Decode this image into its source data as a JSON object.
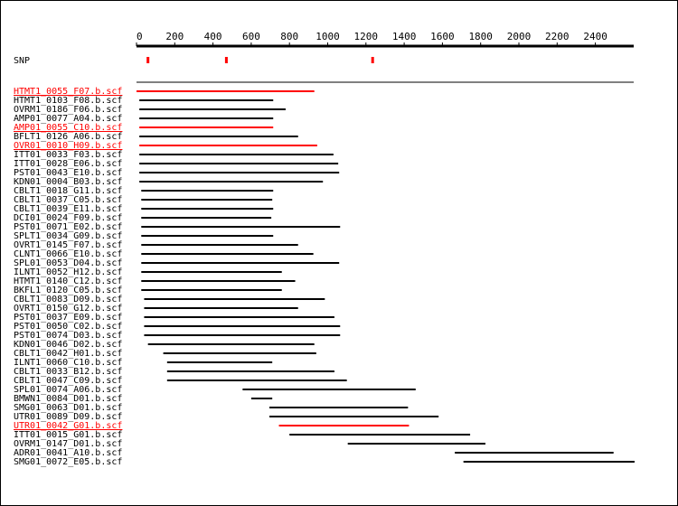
{
  "colors": {
    "background": "#ffffff",
    "ink": "#000000",
    "highlight": "#ff0000"
  },
  "axis": {
    "ticks": [
      "0",
      "200",
      "400",
      "600",
      "800",
      "1000",
      "1200",
      "1400",
      "1600",
      "1800",
      "2000",
      "2200",
      "2400"
    ],
    "range": [
      0,
      2600
    ]
  },
  "snp": {
    "label": "SNP",
    "positions": [
      60,
      470,
      1235
    ]
  },
  "reads": [
    {
      "name": "HTMT1_0055_F07.b.scf",
      "start": 0,
      "end": 930,
      "highlight": true
    },
    {
      "name": "HTMT1_0103_F08.b.scf",
      "start": 15,
      "end": 715,
      "highlight": false
    },
    {
      "name": "OVRM1_0186_F06.b.scf",
      "start": 15,
      "end": 780,
      "highlight": false
    },
    {
      "name": "AMP01_0077_A04.b.scf",
      "start": 15,
      "end": 715,
      "highlight": false
    },
    {
      "name": "AMP01_0055_C10.b.scf",
      "start": 15,
      "end": 715,
      "highlight": true
    },
    {
      "name": "BFLT1_0126_A06.b.scf",
      "start": 15,
      "end": 845,
      "highlight": false
    },
    {
      "name": "OVR01_0010_H09.b.scf",
      "start": 15,
      "end": 945,
      "highlight": true
    },
    {
      "name": "ITT01_0033_F03.b.scf",
      "start": 15,
      "end": 1030,
      "highlight": false
    },
    {
      "name": "ITT01_0028_E06.b.scf",
      "start": 15,
      "end": 1055,
      "highlight": false
    },
    {
      "name": "PST01_0043_E10.b.scf",
      "start": 15,
      "end": 1060,
      "highlight": false
    },
    {
      "name": "KDN01_0004_B03.b.scf",
      "start": 15,
      "end": 975,
      "highlight": false
    },
    {
      "name": "CBLT1_0018_G11.b.scf",
      "start": 25,
      "end": 715,
      "highlight": false
    },
    {
      "name": "CBLT1_0037_C05.b.scf",
      "start": 25,
      "end": 710,
      "highlight": false
    },
    {
      "name": "CBLT1_0039_E11.b.scf",
      "start": 25,
      "end": 715,
      "highlight": false
    },
    {
      "name": "DCI01_0024_F09.b.scf",
      "start": 25,
      "end": 705,
      "highlight": false
    },
    {
      "name": "PST01_0071_E02.b.scf",
      "start": 25,
      "end": 1065,
      "highlight": false
    },
    {
      "name": "SPLT1_0034_G09.b.scf",
      "start": 25,
      "end": 715,
      "highlight": false
    },
    {
      "name": "OVRT1_0145_F07.b.scf",
      "start": 25,
      "end": 845,
      "highlight": false
    },
    {
      "name": "CLNT1_0066_E10.b.scf",
      "start": 25,
      "end": 925,
      "highlight": false
    },
    {
      "name": "SPL01_0053_D04.b.scf",
      "start": 25,
      "end": 1060,
      "highlight": false
    },
    {
      "name": "ILNT1_0052_H12.b.scf",
      "start": 25,
      "end": 760,
      "highlight": false
    },
    {
      "name": "HTMT1_0140_C12.b.scf",
      "start": 25,
      "end": 830,
      "highlight": false
    },
    {
      "name": "BKFL1_0120_C05.b.scf",
      "start": 25,
      "end": 760,
      "highlight": false
    },
    {
      "name": "CBLT1_0083_D09.b.scf",
      "start": 40,
      "end": 985,
      "highlight": false
    },
    {
      "name": "OVRT1_0150_G12.b.scf",
      "start": 40,
      "end": 845,
      "highlight": false
    },
    {
      "name": "PST01_0037_E09.b.scf",
      "start": 40,
      "end": 1035,
      "highlight": false
    },
    {
      "name": "PST01_0050_C02.b.scf",
      "start": 40,
      "end": 1065,
      "highlight": false
    },
    {
      "name": "PST01_0074_D03.b.scf",
      "start": 40,
      "end": 1065,
      "highlight": false
    },
    {
      "name": "KDN01_0046_D02.b.scf",
      "start": 60,
      "end": 930,
      "highlight": false
    },
    {
      "name": "CBLT1_0042_H01.b.scf",
      "start": 140,
      "end": 940,
      "highlight": false
    },
    {
      "name": "ILNT1_0060_C10.b.scf",
      "start": 160,
      "end": 710,
      "highlight": false
    },
    {
      "name": "CBLT1_0033_B12.b.scf",
      "start": 160,
      "end": 1035,
      "highlight": false
    },
    {
      "name": "CBLT1_0047_C09.b.scf",
      "start": 160,
      "end": 1100,
      "highlight": false
    },
    {
      "name": "SPL01_0074_A06.b.scf",
      "start": 555,
      "end": 1460,
      "highlight": false
    },
    {
      "name": "BMWN1_0084_D01.b.scf",
      "start": 600,
      "end": 710,
      "highlight": false
    },
    {
      "name": "SMG01_0063_D01.b.scf",
      "start": 695,
      "end": 1420,
      "highlight": false
    },
    {
      "name": "UTR01_0089_D09.b.scf",
      "start": 695,
      "end": 1580,
      "highlight": false
    },
    {
      "name": "UTR01_0042_G01.b.scf",
      "start": 745,
      "end": 1425,
      "highlight": true
    },
    {
      "name": "ITT01_0015_G01.b.scf",
      "start": 800,
      "end": 1745,
      "highlight": false
    },
    {
      "name": "OVRM1_0147_D01.b.scf",
      "start": 1105,
      "end": 1825,
      "highlight": false
    },
    {
      "name": "ADR01_0041_A10.b.scf",
      "start": 1665,
      "end": 2495,
      "highlight": false
    },
    {
      "name": "SMG01_0072_E05.b.scf",
      "start": 1710,
      "end": 2605,
      "highlight": false
    }
  ]
}
